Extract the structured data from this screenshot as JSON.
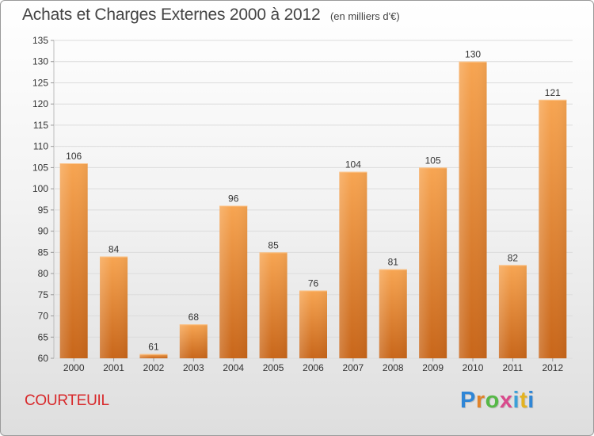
{
  "header": {
    "title": "Achats et Charges Externes 2000 à 2012",
    "unit": "(en milliers d'€)"
  },
  "footer": {
    "commune": "COURTEUIL",
    "logo": "Proxiti"
  },
  "colors": {
    "bar_top": "#f7a552",
    "bar_bottom": "#c8661a",
    "grid": "#dcdcdc",
    "axis_text": "#333333",
    "commune": "#d8282a",
    "logo_letters": [
      "#2f86d6",
      "#e0832a",
      "#56b847",
      "#d94a8c",
      "#3aa0d8",
      "#e4b320",
      "#2f86d6"
    ]
  },
  "chart_data": {
    "type": "bar",
    "title": "Achats et Charges Externes 2000 à 2012",
    "subtitle": "(en milliers d'€)",
    "categories": [
      "2000",
      "2001",
      "2002",
      "2003",
      "2004",
      "2005",
      "2006",
      "2007",
      "2008",
      "2009",
      "2010",
      "2011",
      "2012"
    ],
    "values": [
      106,
      84,
      61,
      68,
      96,
      85,
      76,
      104,
      81,
      105,
      130,
      82,
      121
    ],
    "ylim": [
      60,
      135
    ],
    "yticks": [
      60,
      65,
      70,
      75,
      80,
      85,
      90,
      95,
      100,
      105,
      110,
      115,
      120,
      125,
      130,
      135
    ],
    "xlabel": "",
    "ylabel": "",
    "grid": true,
    "legend": "none"
  }
}
